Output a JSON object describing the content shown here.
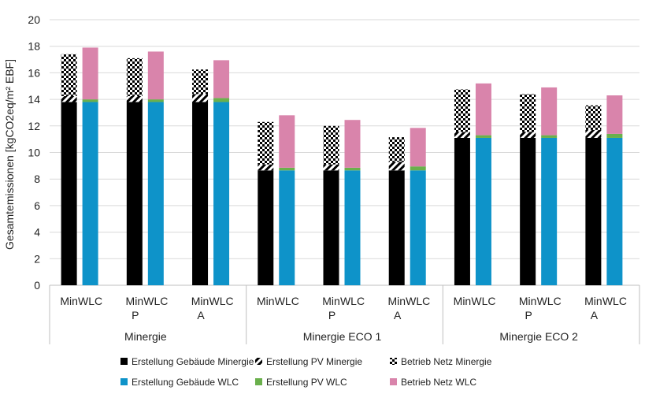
{
  "chart_data": {
    "type": "bar",
    "stacked": true,
    "ylabel": "Gesamtemissionen [kgCO2eq/m² EBF]",
    "ylim": [
      0,
      20
    ],
    "yticks": [
      0,
      2,
      4,
      6,
      8,
      10,
      12,
      14,
      16,
      18,
      20
    ],
    "grid": true,
    "legend_position": "bottom",
    "groups": [
      {
        "label": "Minergie",
        "subgroups": [
          {
            "label": "",
            "bars": [
              {
                "label": "Min",
                "kind": "min",
                "values": [
                  13.8,
                  0.45,
                  3.15
                ]
              },
              {
                "label": "WLC",
                "kind": "wlc",
                "values": [
                  13.8,
                  0.2,
                  3.9
                ]
              }
            ]
          },
          {
            "label": "P",
            "bars": [
              {
                "label": "Min",
                "kind": "min",
                "values": [
                  13.8,
                  0.45,
                  2.85
                ]
              },
              {
                "label": "WLC",
                "kind": "wlc",
                "values": [
                  13.8,
                  0.2,
                  3.6
                ]
              }
            ]
          },
          {
            "label": "A",
            "bars": [
              {
                "label": "Min",
                "kind": "min",
                "values": [
                  13.8,
                  0.6,
                  1.85
                ]
              },
              {
                "label": "WLC",
                "kind": "wlc",
                "values": [
                  13.8,
                  0.3,
                  2.85
                ]
              }
            ]
          }
        ]
      },
      {
        "label": "Minergie ECO 1",
        "subgroups": [
          {
            "label": "",
            "bars": [
              {
                "label": "Min",
                "kind": "min",
                "values": [
                  8.65,
                  0.45,
                  3.2
                ]
              },
              {
                "label": "WLC",
                "kind": "wlc",
                "values": [
                  8.65,
                  0.2,
                  3.95
                ]
              }
            ]
          },
          {
            "label": "P",
            "bars": [
              {
                "label": "Min",
                "kind": "min",
                "values": [
                  8.65,
                  0.45,
                  2.9
                ]
              },
              {
                "label": "WLC",
                "kind": "wlc",
                "values": [
                  8.65,
                  0.2,
                  3.6
                ]
              }
            ]
          },
          {
            "label": "A",
            "bars": [
              {
                "label": "Min",
                "kind": "min",
                "values": [
                  8.65,
                  0.65,
                  1.85
                ]
              },
              {
                "label": "WLC",
                "kind": "wlc",
                "values": [
                  8.65,
                  0.3,
                  2.9
                ]
              }
            ]
          }
        ]
      },
      {
        "label": "Minergie ECO 2",
        "subgroups": [
          {
            "label": "",
            "bars": [
              {
                "label": "Min",
                "kind": "min",
                "values": [
                  11.1,
                  0.45,
                  3.2
                ]
              },
              {
                "label": "WLC",
                "kind": "wlc",
                "values": [
                  11.1,
                  0.2,
                  3.9
                ]
              }
            ]
          },
          {
            "label": "P",
            "bars": [
              {
                "label": "Min",
                "kind": "min",
                "values": [
                  11.1,
                  0.45,
                  2.85
                ]
              },
              {
                "label": "WLC",
                "kind": "wlc",
                "values": [
                  11.1,
                  0.2,
                  3.6
                ]
              }
            ]
          },
          {
            "label": "A",
            "bars": [
              {
                "label": "Min",
                "kind": "min",
                "values": [
                  11.1,
                  0.6,
                  1.85
                ]
              },
              {
                "label": "WLC",
                "kind": "wlc",
                "values": [
                  11.1,
                  0.3,
                  2.9
                ]
              }
            ]
          }
        ]
      }
    ],
    "series": [
      {
        "name": "Erstellung Gebäude Minergie",
        "kind": "min",
        "segment": 0,
        "color": "#000000",
        "pattern": "solid"
      },
      {
        "name": "Erstellung PV Minergie",
        "kind": "min",
        "segment": 1,
        "color": "#000000",
        "pattern": "diagonal"
      },
      {
        "name": "Betrieb Netz Minergie",
        "kind": "min",
        "segment": 2,
        "color": "#000000",
        "pattern": "checker"
      },
      {
        "name": "Erstellung Gebäude WLC",
        "kind": "wlc",
        "segment": 0,
        "color": "#0e93c9",
        "pattern": "solid"
      },
      {
        "name": "Erstellung PV WLC",
        "kind": "wlc",
        "segment": 1,
        "color": "#6ab04c",
        "pattern": "solid"
      },
      {
        "name": "Betrieb Netz WLC",
        "kind": "wlc",
        "segment": 2,
        "color": "#d984ab",
        "pattern": "solid"
      }
    ]
  }
}
